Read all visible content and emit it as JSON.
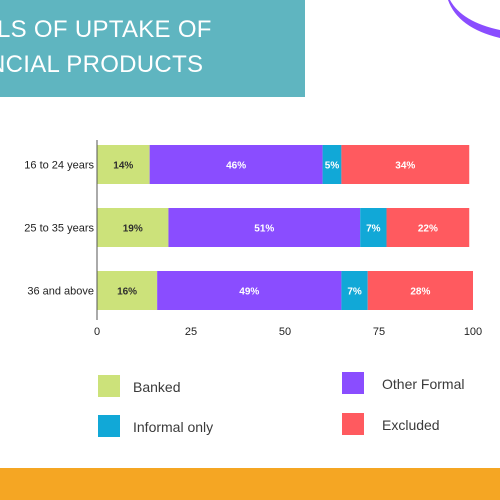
{
  "header": {
    "title_line1": "LS OF UPTAKE OF",
    "title_line2": "NCIAL PRODUCTS"
  },
  "chart_data": {
    "type": "bar",
    "orientation": "horizontal",
    "stacked": true,
    "categories": [
      "16 to 24 years",
      "25 to 35 years",
      "36 and above"
    ],
    "series": [
      {
        "name": "Banked",
        "color": "#cce27a",
        "values": [
          14,
          19,
          16
        ],
        "labels": [
          "14%",
          "19%",
          "16%"
        ]
      },
      {
        "name": "Other Formal",
        "color": "#8a4dff",
        "values": [
          46,
          51,
          49
        ],
        "labels": [
          "46%",
          "51%",
          "49%"
        ]
      },
      {
        "name": "Informal only",
        "color": "#11a8d7",
        "values": [
          5,
          7,
          7
        ],
        "labels": [
          "5%",
          "7%",
          "7%"
        ]
      },
      {
        "name": "Excluded",
        "color": "#ff5a5f",
        "values": [
          34,
          22,
          28
        ],
        "labels": [
          "34%",
          "22%",
          "28%"
        ]
      }
    ],
    "xlim": [
      0,
      100
    ],
    "xticks": [
      0,
      25,
      50,
      75,
      100
    ],
    "xtick_labels": [
      "0",
      "25",
      "50",
      "75",
      "100"
    ],
    "grid": false,
    "legend_position": "bottom"
  },
  "legend": [
    {
      "label": "Banked",
      "color": "#cce27a"
    },
    {
      "label": "Other Formal",
      "color": "#8a4dff"
    },
    {
      "label": "Informal only",
      "color": "#11a8d7"
    },
    {
      "label": "Excluded",
      "color": "#ff5a5f"
    }
  ],
  "colors": {
    "banner": "#5fb5c0",
    "accent": "#8a4dff",
    "footer": "#f5a623"
  }
}
